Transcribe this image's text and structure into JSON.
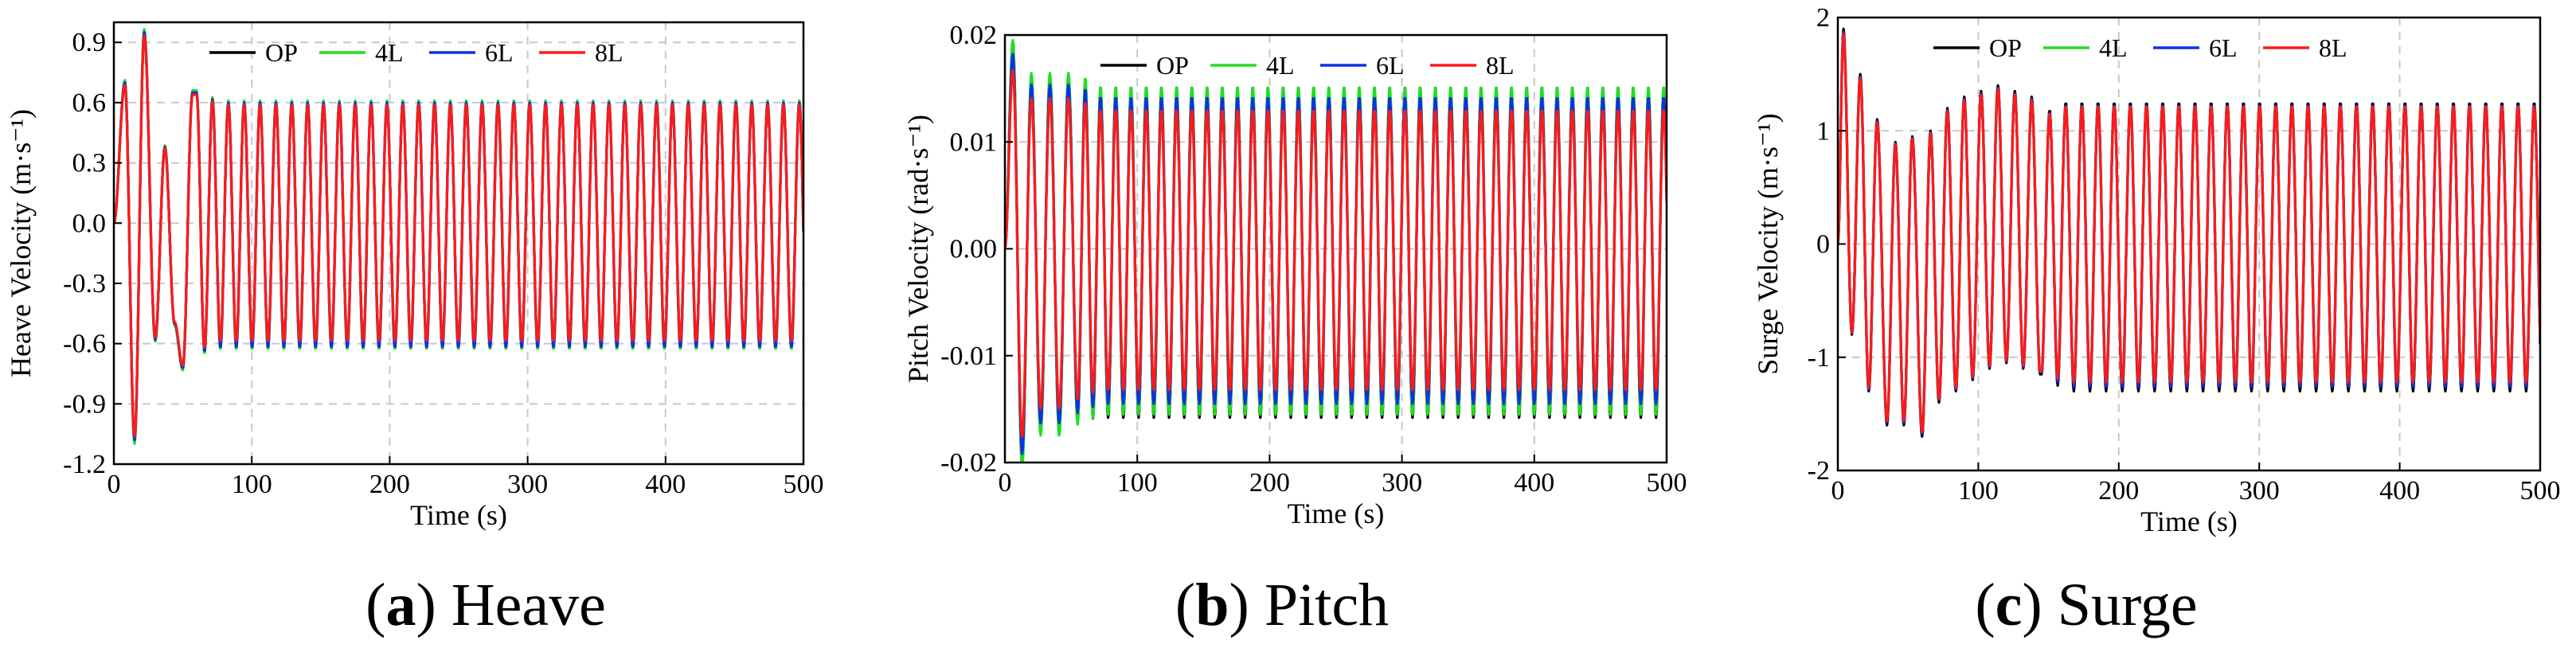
{
  "figure": {
    "captions": [
      {
        "letter": "a",
        "label": "Heave"
      },
      {
        "letter": "b",
        "label": "Pitch"
      },
      {
        "letter": "c",
        "label": "Surge"
      }
    ]
  },
  "series_colors": {
    "OP": "#000000",
    "4L": "#22dd22",
    "6L": "#1030e0",
    "8L": "#ff1a1a"
  },
  "chart_data": [
    {
      "type": "line",
      "title": "(a) Heave",
      "xlabel": "Time (s)",
      "ylabel": "Heave Velocity (m·s⁻¹)",
      "xlim": [
        0,
        500
      ],
      "ylim": [
        -1.2,
        1.0
      ],
      "xticks": [
        0,
        100,
        200,
        300,
        400,
        500
      ],
      "xtick_labels": [
        "0",
        "100",
        "200",
        "300",
        "400",
        "500"
      ],
      "yticks": [
        -1.2,
        -0.9,
        -0.6,
        -0.3,
        0.0,
        0.3,
        0.6,
        0.9
      ],
      "ytick_labels": [
        "-1.2",
        "-0.9",
        "-0.6",
        "-0.3",
        "0.0",
        "0.3",
        "0.6",
        "0.9"
      ],
      "grid": true,
      "legend": [
        "OP",
        "4L",
        "6L",
        "8L"
      ],
      "legend_position": "top",
      "signal": {
        "period_s": 11.5,
        "transient": [
          [
            8,
            0.7
          ],
          [
            15,
            -1.08
          ],
          [
            22,
            0.95
          ],
          [
            30,
            -0.58
          ],
          [
            37,
            0.38
          ],
          [
            44,
            -0.5
          ],
          [
            50,
            -0.72
          ],
          [
            57,
            0.65
          ]
        ],
        "steady_start_s": 60
      },
      "series": [
        {
          "name": "OP",
          "amplitude": 0.6,
          "peak": 0.6,
          "trough": -0.6
        },
        {
          "name": "4L",
          "amplitude": 0.61,
          "peak": 0.61,
          "trough": -0.63
        },
        {
          "name": "6L",
          "amplitude": 0.6,
          "peak": 0.6,
          "trough": -0.62
        },
        {
          "name": "8L",
          "amplitude": 0.59,
          "peak": 0.59,
          "trough": -0.59
        }
      ]
    },
    {
      "type": "line",
      "title": "(b) Pitch",
      "xlabel": "Time (s)",
      "ylabel": "Pitch Velocity (rad·s⁻¹)",
      "xlim": [
        0,
        500
      ],
      "ylim": [
        -0.02,
        0.02
      ],
      "xticks": [
        0,
        100,
        200,
        300,
        400,
        500
      ],
      "xtick_labels": [
        "0",
        "100",
        "200",
        "300",
        "400",
        "500"
      ],
      "yticks": [
        -0.02,
        -0.01,
        0.0,
        0.01,
        0.02
      ],
      "ytick_labels": [
        "-0.02",
        "-0.01",
        "0.00",
        "0.01",
        "0.02"
      ],
      "grid": true,
      "legend": [
        "OP",
        "4L",
        "6L",
        "8L"
      ],
      "legend_position": "top",
      "signal": {
        "period_s": 11.5,
        "transient": [
          [
            6,
            0.019
          ],
          [
            13,
            -0.02
          ],
          [
            20,
            0.016
          ],
          [
            27,
            -0.017
          ],
          [
            34,
            0.016
          ],
          [
            41,
            -0.017
          ],
          [
            48,
            0.016
          ],
          [
            55,
            -0.016
          ]
        ],
        "steady_start_s": 55
      },
      "series": [
        {
          "name": "OP",
          "amplitude": 0.0148,
          "peak": 0.0148,
          "trough": -0.0158
        },
        {
          "name": "4L",
          "amplitude": 0.0152,
          "peak": 0.0152,
          "trough": -0.0155
        },
        {
          "name": "6L",
          "amplitude": 0.0142,
          "peak": 0.0142,
          "trough": -0.0145
        },
        {
          "name": "8L",
          "amplitude": 0.013,
          "peak": 0.013,
          "trough": -0.0132
        }
      ]
    },
    {
      "type": "line",
      "title": "(c) Surge",
      "xlabel": "Time (s)",
      "ylabel": "Surge Velocity (m·s⁻¹)",
      "xlim": [
        0,
        500
      ],
      "ylim": [
        -2,
        2
      ],
      "xticks": [
        0,
        100,
        200,
        300,
        400,
        500
      ],
      "xtick_labels": [
        "0",
        "100",
        "200",
        "300",
        "400",
        "500"
      ],
      "yticks": [
        -2,
        -1,
        0,
        1,
        2
      ],
      "ytick_labels": [
        "-2",
        "-1",
        "0",
        "1",
        "2"
      ],
      "grid": true,
      "legend": [
        "OP",
        "4L",
        "6L",
        "8L"
      ],
      "legend_position": "top",
      "signal": {
        "period_s": 11.5,
        "transient": [
          [
            4,
            1.9
          ],
          [
            10,
            -0.8
          ],
          [
            16,
            1.5
          ],
          [
            22,
            -1.3
          ],
          [
            28,
            1.1
          ],
          [
            35,
            -1.6
          ],
          [
            41,
            0.9
          ],
          [
            47,
            -1.6
          ],
          [
            53,
            0.95
          ],
          [
            60,
            -1.7
          ],
          [
            66,
            1.0
          ],
          [
            72,
            -1.4
          ],
          [
            78,
            1.2
          ],
          [
            84,
            -1.3
          ],
          [
            90,
            1.3
          ],
          [
            96,
            -1.2
          ],
          [
            102,
            1.35
          ],
          [
            108,
            -1.1
          ],
          [
            114,
            1.4
          ],
          [
            120,
            -1.05
          ],
          [
            126,
            1.35
          ],
          [
            132,
            -1.1
          ],
          [
            138,
            1.3
          ],
          [
            144,
            -1.15
          ]
        ],
        "steady_start_s": 145
      },
      "series": [
        {
          "name": "OP",
          "amplitude": 1.25,
          "peak": 1.25,
          "trough": -1.3
        },
        {
          "name": "4L",
          "amplitude": 1.22,
          "peak": 1.22,
          "trough": -1.25
        },
        {
          "name": "6L",
          "amplitude": 1.23,
          "peak": 1.23,
          "trough": -1.26
        },
        {
          "name": "8L",
          "amplitude": 1.22,
          "peak": 1.22,
          "trough": -1.22
        }
      ]
    }
  ]
}
